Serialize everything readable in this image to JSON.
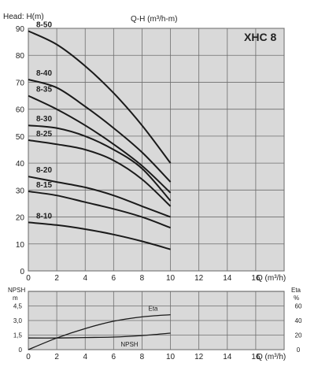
{
  "colors": {
    "plot_bg": "#d9d9d9",
    "grid": "#6e6e6e",
    "curve": "#1a1a1a",
    "frame": "#555555"
  },
  "chart_data": [
    {
      "type": "line",
      "title": "Q-H (m³/h-m)",
      "model_label": "XHC 8",
      "ylabel": "Head: H(m)",
      "xlabel": "Q (m³/h)",
      "xlim": [
        0,
        18
      ],
      "ylim": [
        0,
        90
      ],
      "x_ticks": [
        0,
        2,
        4,
        6,
        8,
        10,
        12,
        14,
        16,
        18
      ],
      "y_ticks": [
        0,
        10,
        20,
        30,
        40,
        50,
        60,
        70,
        80,
        90
      ],
      "grid": true,
      "series": [
        {
          "name": "8-50",
          "x": [
            0,
            2,
            4,
            6,
            8,
            10
          ],
          "y": [
            89,
            84,
            76,
            66,
            54,
            40
          ]
        },
        {
          "name": "8-40",
          "x": [
            0,
            2,
            4,
            6,
            8,
            10
          ],
          "y": [
            71,
            68,
            61,
            53,
            44,
            33
          ]
        },
        {
          "name": "8-35",
          "x": [
            0,
            2,
            4,
            6,
            8,
            10
          ],
          "y": [
            65,
            60,
            54,
            47,
            39,
            29
          ]
        },
        {
          "name": "8-30",
          "x": [
            0,
            2,
            4,
            6,
            8,
            10
          ],
          "y": [
            54,
            53,
            50,
            45,
            38,
            26
          ]
        },
        {
          "name": "8-25",
          "x": [
            0,
            2,
            4,
            6,
            8,
            10
          ],
          "y": [
            48.5,
            47,
            45,
            41,
            34,
            24
          ]
        },
        {
          "name": "8-20",
          "x": [
            0,
            2,
            4,
            6,
            8,
            10
          ],
          "y": [
            35,
            33,
            31,
            28,
            24,
            20
          ]
        },
        {
          "name": "8-15",
          "x": [
            0,
            2,
            4,
            6,
            8,
            10
          ],
          "y": [
            29.5,
            28,
            25.5,
            23,
            20,
            16
          ]
        },
        {
          "name": "8-10",
          "x": [
            0,
            2,
            4,
            6,
            8,
            10
          ],
          "y": [
            18,
            17,
            15.5,
            13.5,
            11,
            8
          ]
        }
      ]
    },
    {
      "type": "line",
      "xlabel": "Q (m³/h)",
      "left_axis_label": [
        "NPSH",
        "m"
      ],
      "right_axis_label": [
        "Eta",
        "%"
      ],
      "xlim": [
        0,
        18
      ],
      "x_ticks": [
        0,
        2,
        4,
        6,
        8,
        10,
        12,
        14,
        16,
        18
      ],
      "left_ylim": [
        0,
        6
      ],
      "left_ticks": [
        "4,5",
        "3,0",
        "1,5",
        "0"
      ],
      "left_tick_values": [
        4.5,
        3.0,
        1.5,
        0
      ],
      "right_ylim": [
        0,
        80
      ],
      "right_ticks": [
        60,
        40,
        20,
        0
      ],
      "grid": true,
      "series": [
        {
          "name": "Eta",
          "axis": "right",
          "x": [
            0,
            2,
            4,
            6,
            8,
            10
          ],
          "y": [
            0,
            16,
            29,
            39,
            45,
            48
          ]
        },
        {
          "name": "NPSH",
          "axis": "left",
          "x": [
            0,
            2,
            4,
            6,
            8,
            10
          ],
          "y": [
            1.2,
            1.2,
            1.25,
            1.3,
            1.45,
            1.7
          ]
        }
      ]
    }
  ]
}
